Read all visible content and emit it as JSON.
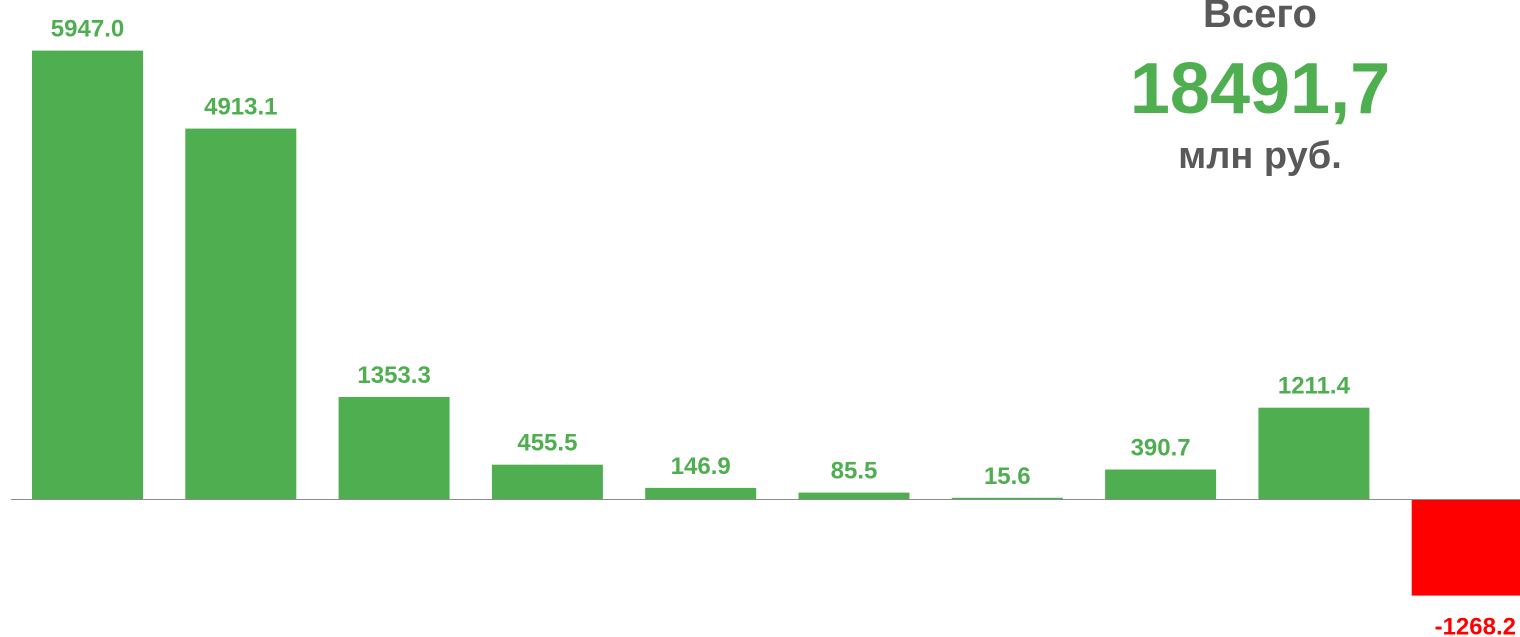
{
  "colors": {
    "positive": "#4faf50",
    "negative": "#ff0000",
    "axis": "#8c8c8c",
    "total_value": "#4faf50",
    "total_text": "#595959"
  },
  "total": {
    "heading": "Всего",
    "value": "18491,7",
    "unit": "млн руб."
  },
  "chart_data": {
    "type": "bar",
    "values": [
      5947.0,
      4913.1,
      1353.3,
      455.5,
      146.9,
      85.5,
      15.6,
      390.7,
      1211.4,
      -1268.2
    ],
    "value_labels": [
      "5947.0",
      "4913.1",
      "1353.3",
      "455.5",
      "146.9",
      "85.5",
      "15.6",
      "390.7",
      "1211.4",
      "-1268.2"
    ],
    "title": "",
    "xlabel": "",
    "ylabel": "",
    "ylim": [
      -1900,
      6700
    ],
    "grid": false,
    "legend": "none"
  }
}
